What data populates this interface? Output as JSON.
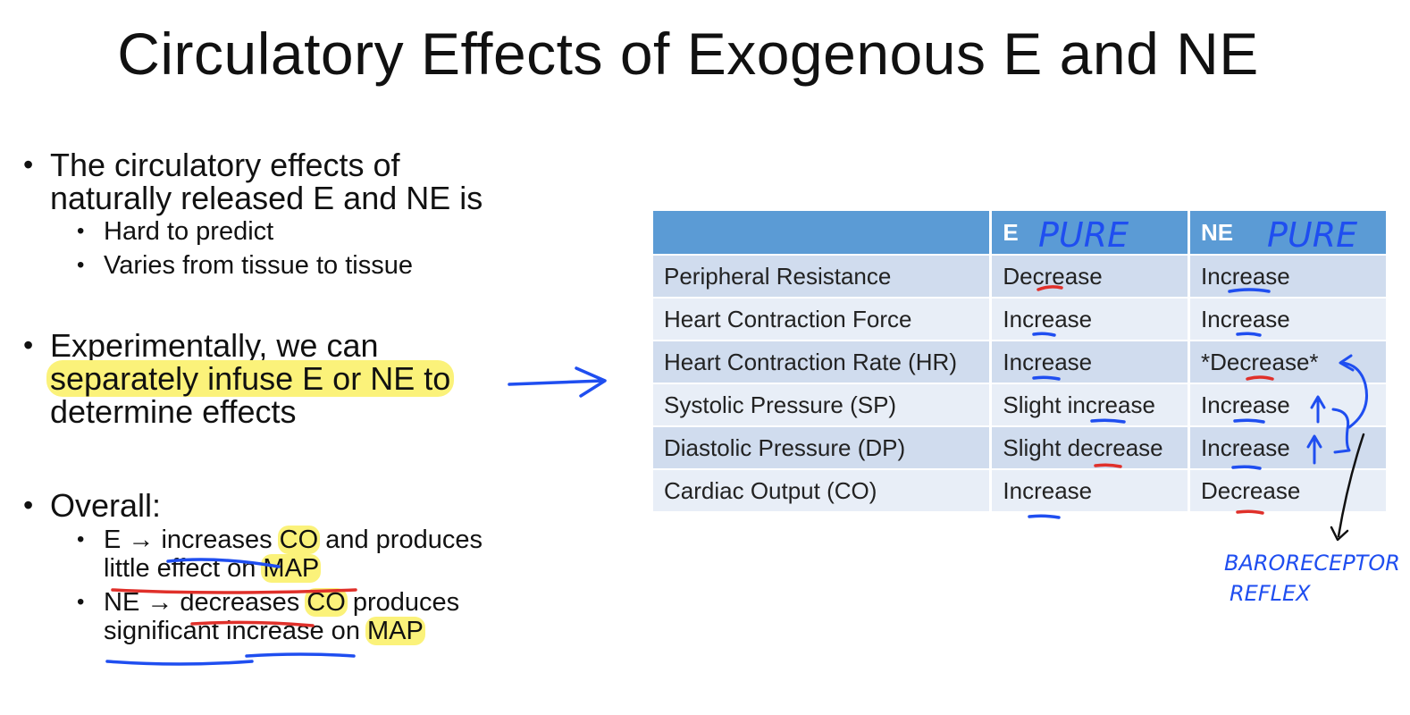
{
  "slide": {
    "title": "Circulatory Effects of Exogenous E and NE"
  },
  "bullets": {
    "b1_line1": "The circulatory effects of",
    "b1_line2": "naturally released E and NE is",
    "b1_sub1": "Hard to predict",
    "b1_sub2": "Varies from tissue to tissue",
    "b2_line1": "Experimentally, we can",
    "b2_line2": "separately infuse E or NE to",
    "b2_line3": "determine effects",
    "b3": "Overall:",
    "b3_sub1_a": "E → ",
    "b3_sub1_b": "increases",
    "b3_sub1_c": " ",
    "b3_sub1_d": "CO",
    "b3_sub1_e": " and produces",
    "b3_sub1_f": "little effect on ",
    "b3_sub1_g": "MAP",
    "b3_sub2_a": "NE → ",
    "b3_sub2_b": "decreases",
    "b3_sub2_c": " ",
    "b3_sub2_d": "CO",
    "b3_sub2_e": " produces",
    "b3_sub2_f": "significant increase on ",
    "b3_sub2_g": "MAP"
  },
  "table": {
    "headers": [
      "",
      "E",
      "NE"
    ],
    "rows": [
      {
        "param": "Peripheral Resistance",
        "e": "Decrease",
        "ne": "Increase"
      },
      {
        "param": "Heart Contraction Force",
        "e": "Increase",
        "ne": "Increase"
      },
      {
        "param": "Heart Contraction Rate (HR)",
        "e": "Increase",
        "ne": "*Decrease*"
      },
      {
        "param": "Systolic Pressure (SP)",
        "e": "Slight increase",
        "ne": "Increase"
      },
      {
        "param": "Diastolic Pressure (DP)",
        "e": "Slight decrease",
        "ne": "Increase"
      },
      {
        "param": "Cardiac Output (CO)",
        "e": "Increase",
        "ne": "Decrease"
      }
    ]
  },
  "annotations": {
    "pure_e": "PURE",
    "pure_ne": "PURE",
    "baro_line1": "BARORECEPTOR",
    "baro_line2": "REFLEX",
    "ink_blue": "#1f4ef0",
    "ink_red": "#e0302a",
    "highlight": "#fbf27a"
  }
}
